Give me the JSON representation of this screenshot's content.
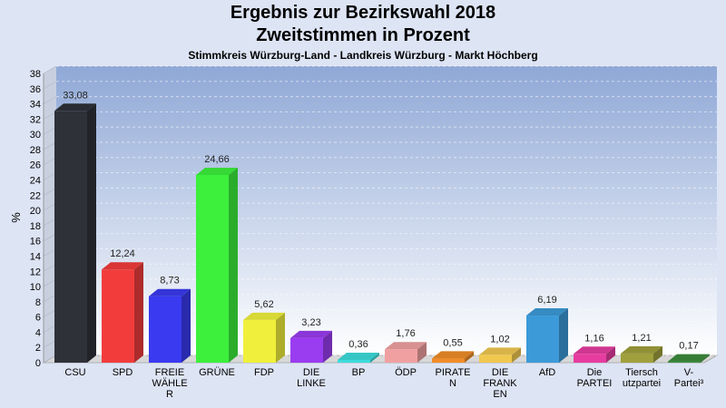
{
  "chart_data": {
    "type": "bar",
    "title": "Ergebnis zur Bezirkswahl 2018",
    "subtitle": "Zweitstimmen in Prozent",
    "subtitle2": "Stimmkreis Würzburg-Land - Landkreis Würzburg - Markt Höchberg",
    "ylabel": "%",
    "ylim": [
      0,
      38
    ],
    "ytick_step": 2,
    "grid": true,
    "categories": [
      [
        "CSU"
      ],
      [
        "SPD"
      ],
      [
        "FREIE",
        "WÄHLE",
        "R"
      ],
      [
        "GRÜNE"
      ],
      [
        "FDP"
      ],
      [
        "DIE",
        "LINKE"
      ],
      [
        "BP"
      ],
      [
        "ÖDP"
      ],
      [
        "PIRATE",
        "N"
      ],
      [
        "DIE",
        "FRANK",
        "EN"
      ],
      [
        "AfD"
      ],
      [
        "Die",
        "PARTEI"
      ],
      [
        "Tiersch",
        "utzpartei"
      ],
      [
        "V-",
        "Partei³"
      ]
    ],
    "values": [
      33.08,
      12.24,
      8.73,
      24.66,
      5.62,
      3.23,
      0.36,
      1.76,
      0.55,
      1.02,
      6.19,
      1.16,
      1.21,
      0.17
    ],
    "value_labels": [
      "33,08",
      "12,24",
      "8,73",
      "24,66",
      "5,62",
      "3,23",
      "0,36",
      "1,76",
      "0,55",
      "1,02",
      "6,19",
      "1,16",
      "1,21",
      "0,17"
    ],
    "colors": [
      "#2e3138",
      "#f23c3c",
      "#3a3af0",
      "#3cf03c",
      "#f0f03c",
      "#9a3cf0",
      "#3cdcdc",
      "#f0a0a0",
      "#f08c28",
      "#f0c850",
      "#3c9ad8",
      "#e63ca0",
      "#a0a03c",
      "#3c8c3c"
    ]
  }
}
